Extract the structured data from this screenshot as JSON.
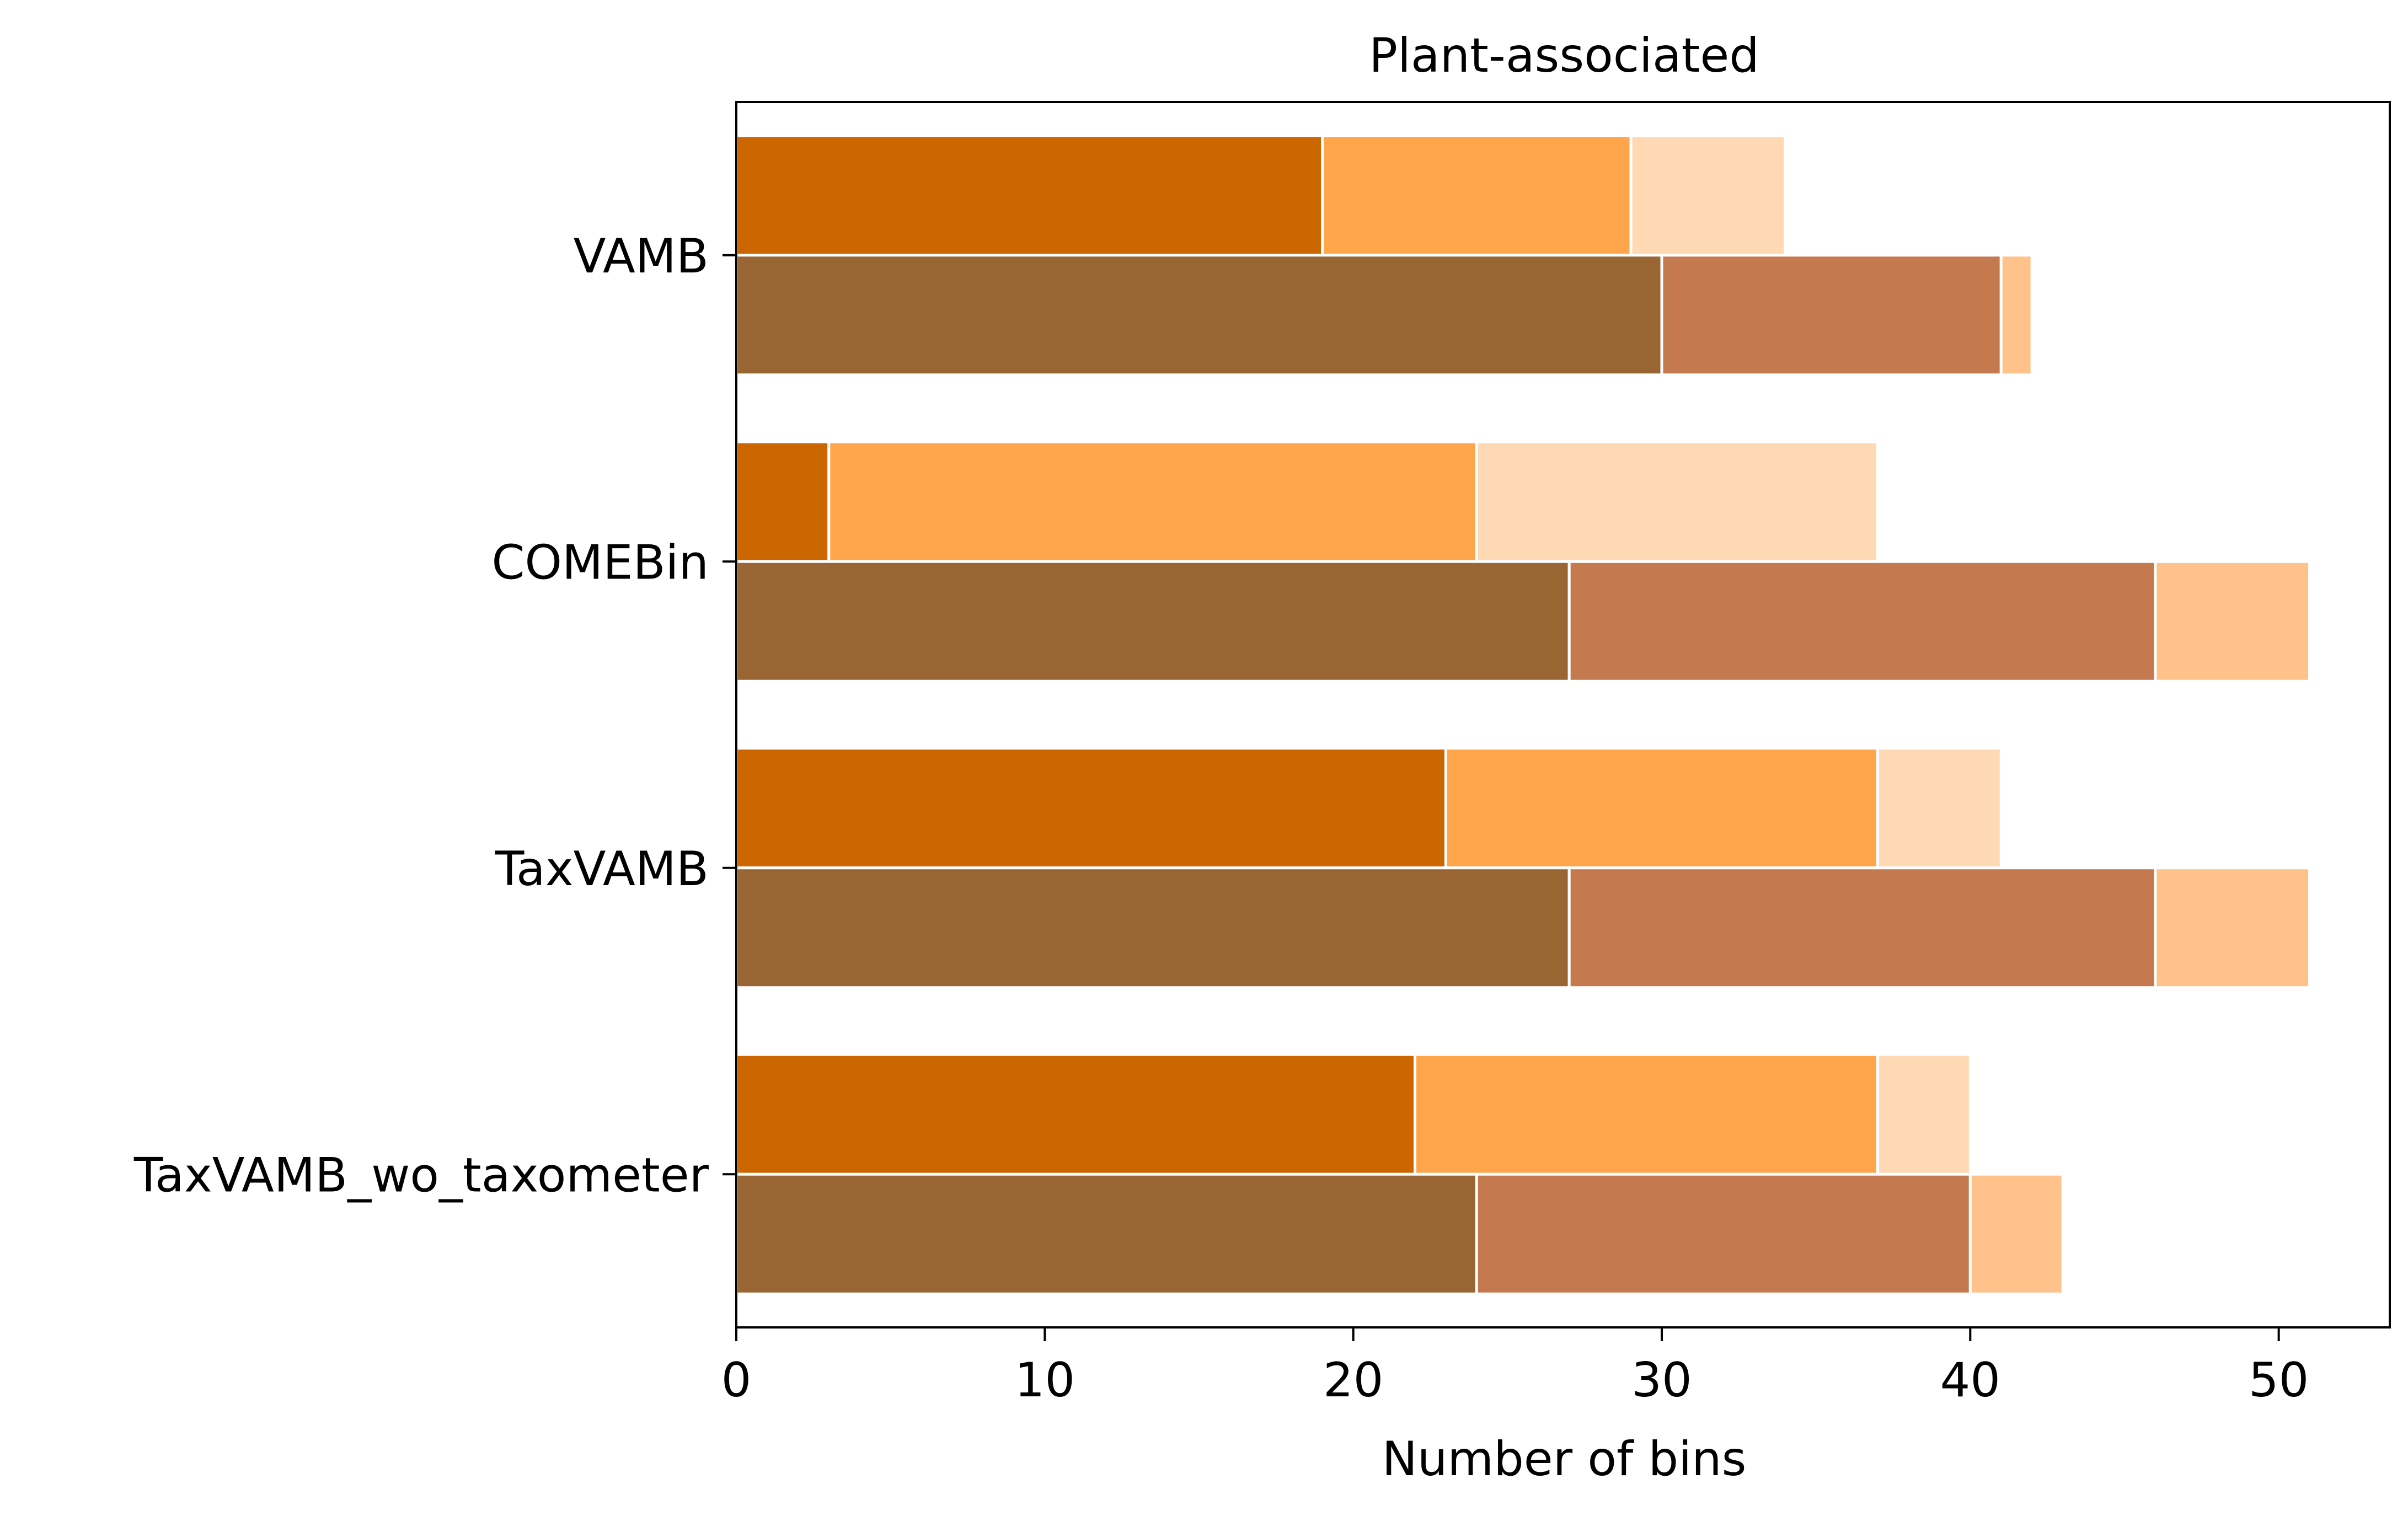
{
  "chart_data": {
    "type": "bar",
    "orientation": "horizontal",
    "stacked": true,
    "title": "Plant-associated",
    "xlabel": "Number of bins",
    "ylabel": "",
    "xlim": [
      0,
      53.6
    ],
    "xticks": [
      0,
      10,
      20,
      30,
      40,
      50
    ],
    "grid": false,
    "legend": "none",
    "categories": [
      "VAMB",
      "COMEBin",
      "TaxVAMB",
      "TaxVAMB_wo_taxometer"
    ],
    "groups": [
      {
        "position": "upper",
        "segments": [
          {
            "color": "#cc6600",
            "values": [
              19,
              3,
              23,
              22
            ]
          },
          {
            "color": "#ffa64d",
            "values": [
              10,
              21,
              14,
              15
            ]
          },
          {
            "color": "#ffd9b3",
            "values": [
              5,
              13,
              4,
              3
            ]
          }
        ]
      },
      {
        "position": "lower",
        "segments": [
          {
            "color": "#996633",
            "values": [
              30,
              27,
              27,
              24
            ]
          },
          {
            "color": "#c47a4e",
            "values": [
              11,
              19,
              19,
              16
            ]
          },
          {
            "color": "#ffc28a",
            "values": [
              1,
              5,
              5,
              3
            ]
          }
        ]
      }
    ]
  }
}
